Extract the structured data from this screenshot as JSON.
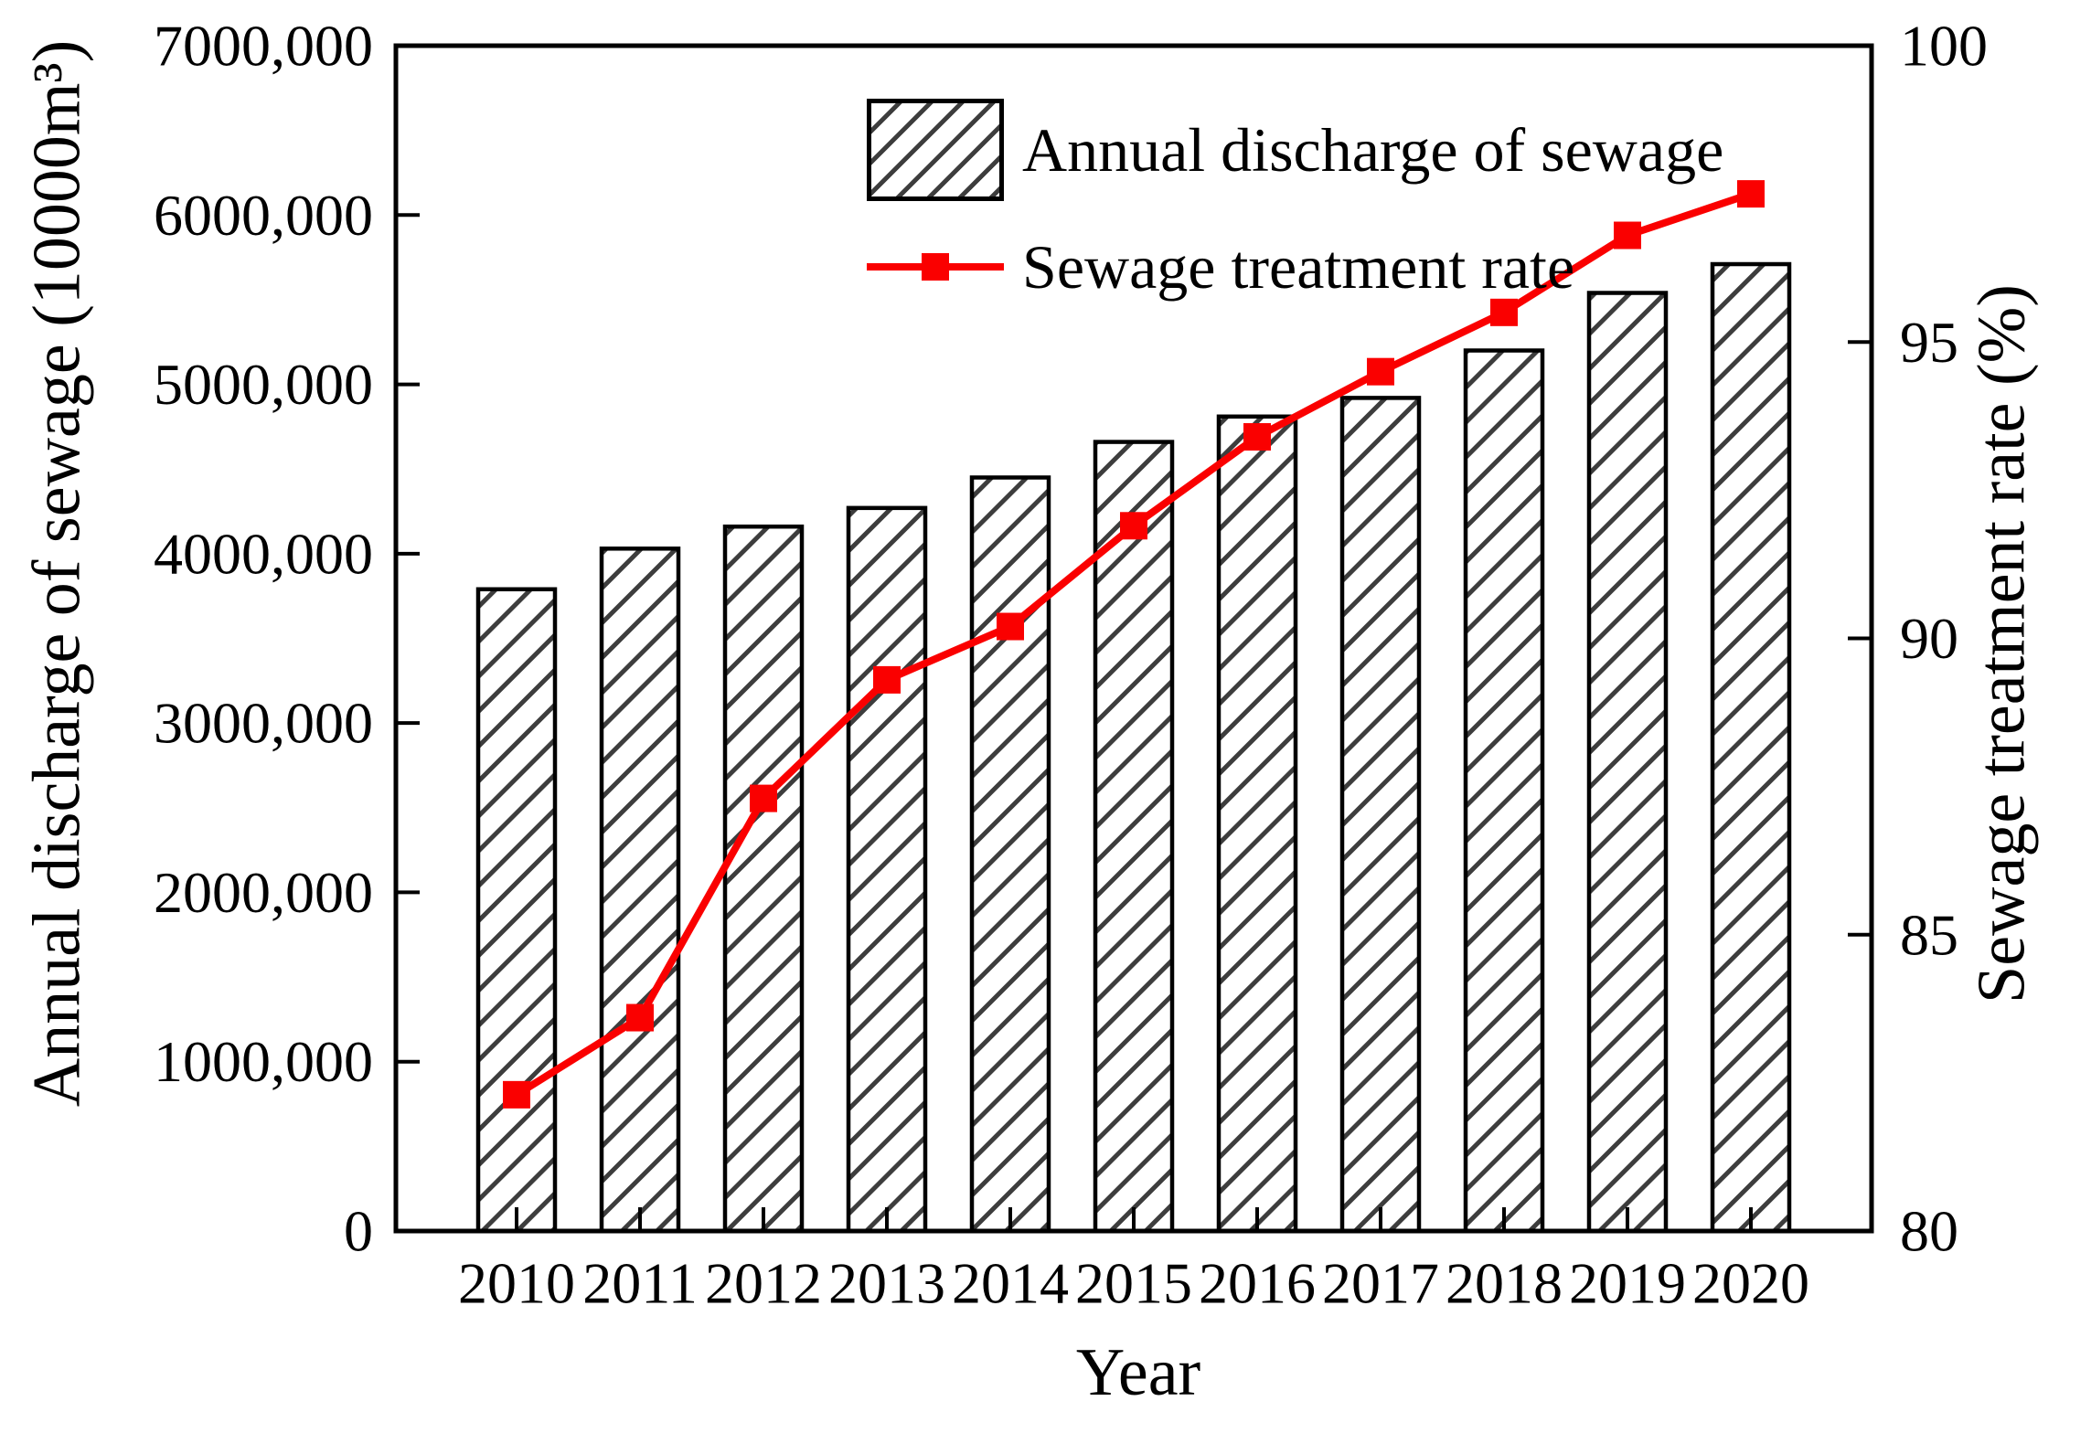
{
  "figure": {
    "xlabel": "Year",
    "ylabel_left": "Annual discharge of sewage (10000m³)",
    "ylabel_right": "Sewage treatment rate (%)"
  },
  "legend": {
    "bar_label": "Annual discharge of sewage",
    "line_label": "Sewage treatment rate"
  },
  "colors": {
    "line": "#fa0000",
    "marker": "#fa0000",
    "bar_fill": "#ffffff",
    "hatch": "#3d3d3d",
    "axis": "#000000",
    "text": "#000000"
  },
  "chart_data": {
    "type": "bar+line",
    "title": "",
    "xlabel": "Year",
    "categories": [
      "2010",
      "2011",
      "2012",
      "2013",
      "2014",
      "2015",
      "2016",
      "2017",
      "2018",
      "2019",
      "2020"
    ],
    "series": [
      {
        "name": "Annual discharge of sewage",
        "type": "bar",
        "axis": "left",
        "unit": "10000m³",
        "values": [
          3790000,
          4030000,
          4160000,
          4270000,
          4450000,
          4660000,
          4810000,
          4920000,
          5200000,
          5540000,
          5710000
        ]
      },
      {
        "name": "Sewage treatment rate",
        "type": "line",
        "axis": "right",
        "unit": "%",
        "values": [
          82.3,
          83.6,
          87.3,
          89.3,
          90.2,
          91.9,
          93.4,
          94.5,
          95.5,
          96.8,
          97.5
        ]
      }
    ],
    "left_axis": {
      "label": "Annual discharge of sewage (10000m³)",
      "min": 0,
      "max": 7000000,
      "tick_step": 1000000,
      "tick_labels": [
        "0",
        "1000,000",
        "2000,000",
        "3000,000",
        "4000,000",
        "5000,000",
        "6000,000",
        "7000,000"
      ]
    },
    "right_axis": {
      "label": "Sewage treatment rate (%)",
      "min": 80,
      "max": 100,
      "tick_step": 5,
      "tick_labels": [
        "80",
        "85",
        "90",
        "95",
        "100"
      ]
    },
    "grid": false,
    "legend_position": "upper center"
  }
}
